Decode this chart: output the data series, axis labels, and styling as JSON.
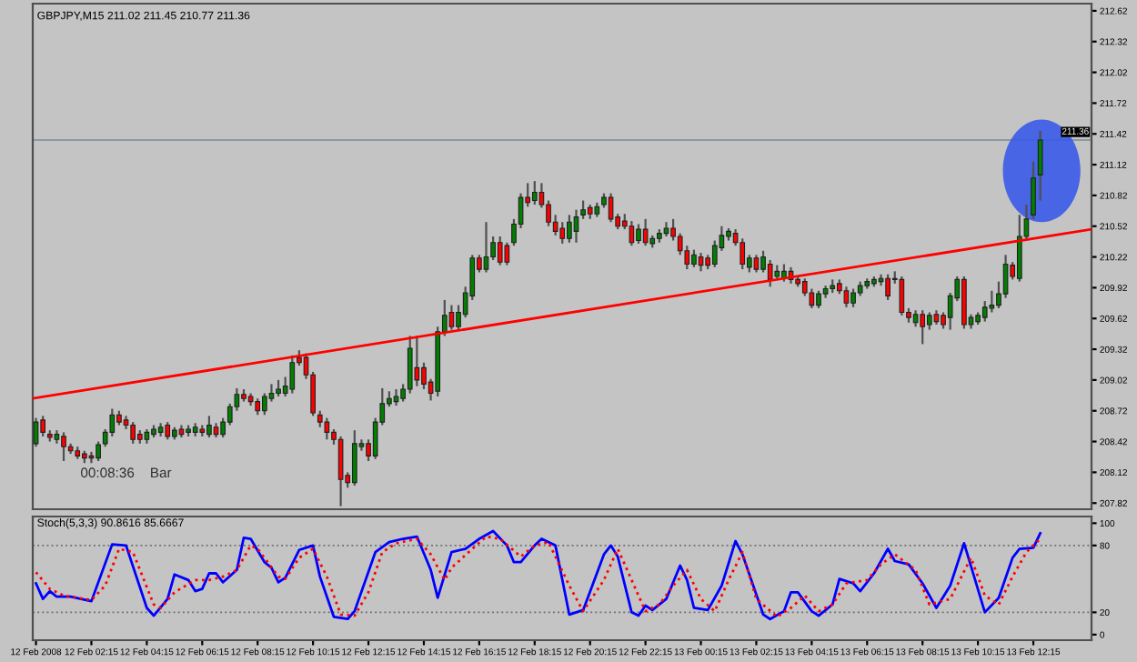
{
  "chart_data": [
    {
      "type": "candlestick",
      "title": "GBPJPY,M15 211.02 211.45 210.77 211.36",
      "x": [
        "2008-02-12T00:15",
        "2008-02-12T00:30",
        "2008-02-12T00:45",
        "2008-02-12T01:00",
        "2008-02-12T01:15",
        "2008-02-12T01:30",
        "2008-02-12T01:45",
        "2008-02-12T02:00",
        "2008-02-12T02:15",
        "2008-02-12T02:30",
        "2008-02-12T02:45",
        "2008-02-12T03:00",
        "2008-02-12T03:15",
        "2008-02-12T03:30",
        "2008-02-12T03:45",
        "2008-02-12T04:00",
        "2008-02-12T04:15",
        "2008-02-12T04:30",
        "2008-02-12T04:45",
        "2008-02-12T05:00",
        "2008-02-12T05:15",
        "2008-02-12T05:30",
        "2008-02-12T05:45",
        "2008-02-12T06:00",
        "2008-02-12T06:15",
        "2008-02-12T06:30",
        "2008-02-12T06:45",
        "2008-02-12T07:00",
        "2008-02-12T07:15",
        "2008-02-12T07:30",
        "2008-02-12T07:45",
        "2008-02-12T08:00",
        "2008-02-12T08:15",
        "2008-02-12T08:30",
        "2008-02-12T08:45",
        "2008-02-12T09:00",
        "2008-02-12T09:15",
        "2008-02-12T09:30",
        "2008-02-12T09:45",
        "2008-02-12T10:00",
        "2008-02-12T10:15",
        "2008-02-12T10:30",
        "2008-02-12T10:45",
        "2008-02-12T11:00",
        "2008-02-12T11:15",
        "2008-02-12T11:30",
        "2008-02-12T11:45",
        "2008-02-12T12:00",
        "2008-02-12T12:15",
        "2008-02-12T12:30",
        "2008-02-12T12:45",
        "2008-02-12T13:00",
        "2008-02-12T13:15",
        "2008-02-12T13:30",
        "2008-02-12T13:45",
        "2008-02-12T14:00",
        "2008-02-12T14:15",
        "2008-02-12T14:30",
        "2008-02-12T14:45",
        "2008-02-12T15:00",
        "2008-02-12T15:15",
        "2008-02-12T15:30",
        "2008-02-12T15:45",
        "2008-02-12T16:00",
        "2008-02-12T16:15",
        "2008-02-12T16:30",
        "2008-02-12T16:45",
        "2008-02-12T17:00",
        "2008-02-12T17:15",
        "2008-02-12T17:30",
        "2008-02-12T17:45",
        "2008-02-12T18:00",
        "2008-02-12T18:15",
        "2008-02-12T18:30",
        "2008-02-12T18:45",
        "2008-02-12T19:00",
        "2008-02-12T19:15",
        "2008-02-12T19:30",
        "2008-02-12T19:45",
        "2008-02-12T20:00",
        "2008-02-12T20:15",
        "2008-02-12T20:30",
        "2008-02-12T20:45",
        "2008-02-12T21:00",
        "2008-02-12T21:15",
        "2008-02-12T21:30",
        "2008-02-12T21:45",
        "2008-02-12T22:00",
        "2008-02-12T22:15",
        "2008-02-12T22:30",
        "2008-02-12T22:45",
        "2008-02-12T23:00",
        "2008-02-12T23:15",
        "2008-02-12T23:30",
        "2008-02-12T23:45",
        "2008-02-13T00:00",
        "2008-02-13T00:15",
        "2008-02-13T00:30",
        "2008-02-13T00:45",
        "2008-02-13T01:00",
        "2008-02-13T01:15",
        "2008-02-13T01:30",
        "2008-02-13T01:45",
        "2008-02-13T02:00",
        "2008-02-13T02:15",
        "2008-02-13T02:30",
        "2008-02-13T02:45",
        "2008-02-13T03:00",
        "2008-02-13T03:15",
        "2008-02-13T03:30",
        "2008-02-13T03:45",
        "2008-02-13T04:00",
        "2008-02-13T04:15",
        "2008-02-13T04:30",
        "2008-02-13T04:45",
        "2008-02-13T05:00",
        "2008-02-13T05:15",
        "2008-02-13T05:30",
        "2008-02-13T05:45",
        "2008-02-13T06:00",
        "2008-02-13T06:15",
        "2008-02-13T06:30",
        "2008-02-13T06:45",
        "2008-02-13T07:00",
        "2008-02-13T07:15",
        "2008-02-13T07:30",
        "2008-02-13T07:45",
        "2008-02-13T08:00",
        "2008-02-13T08:15",
        "2008-02-13T08:30",
        "2008-02-13T08:45",
        "2008-02-13T09:00",
        "2008-02-13T09:15",
        "2008-02-13T09:30",
        "2008-02-13T09:45",
        "2008-02-13T10:00",
        "2008-02-13T10:15",
        "2008-02-13T10:30",
        "2008-02-13T10:45",
        "2008-02-13T11:00",
        "2008-02-13T11:15",
        "2008-02-13T11:30",
        "2008-02-13T11:45",
        "2008-02-13T12:00",
        "2008-02-13T12:15",
        "2008-02-13T12:30"
      ],
      "ohlc": [
        [
          208.4,
          208.65,
          208.37,
          208.61
        ],
        [
          208.63,
          208.67,
          208.47,
          208.51
        ],
        [
          208.49,
          208.53,
          208.42,
          208.46
        ],
        [
          208.44,
          208.53,
          208.4,
          208.49
        ],
        [
          208.47,
          208.51,
          208.23,
          208.37
        ],
        [
          208.37,
          208.4,
          208.3,
          208.33
        ],
        [
          208.33,
          208.37,
          208.25,
          208.28
        ],
        [
          208.3,
          208.33,
          208.21,
          208.26
        ],
        [
          208.28,
          208.32,
          208.21,
          208.26
        ],
        [
          208.26,
          208.42,
          208.23,
          208.39
        ],
        [
          208.4,
          208.54,
          208.37,
          208.51
        ],
        [
          208.51,
          208.74,
          208.47,
          208.68
        ],
        [
          208.68,
          208.72,
          208.58,
          208.61
        ],
        [
          208.63,
          208.67,
          208.54,
          208.58
        ],
        [
          208.58,
          208.61,
          208.4,
          208.44
        ],
        [
          208.49,
          208.53,
          208.4,
          208.44
        ],
        [
          208.44,
          208.54,
          208.4,
          208.51
        ],
        [
          208.49,
          208.58,
          208.46,
          208.54
        ],
        [
          208.51,
          208.6,
          208.47,
          208.56
        ],
        [
          208.58,
          208.61,
          208.44,
          208.47
        ],
        [
          208.47,
          208.56,
          208.44,
          208.53
        ],
        [
          208.54,
          208.58,
          208.46,
          208.49
        ],
        [
          208.51,
          208.58,
          208.47,
          208.54
        ],
        [
          208.51,
          208.6,
          208.47,
          208.56
        ],
        [
          208.54,
          208.58,
          208.47,
          208.51
        ],
        [
          208.49,
          208.67,
          208.46,
          208.58
        ],
        [
          208.56,
          208.6,
          208.46,
          208.49
        ],
        [
          208.49,
          208.65,
          208.46,
          208.61
        ],
        [
          208.61,
          208.79,
          208.58,
          208.76
        ],
        [
          208.76,
          208.94,
          208.72,
          208.88
        ],
        [
          208.88,
          208.93,
          208.81,
          208.84
        ],
        [
          208.86,
          208.89,
          208.77,
          208.81
        ],
        [
          208.81,
          208.84,
          208.68,
          208.72
        ],
        [
          208.72,
          208.89,
          208.68,
          208.86
        ],
        [
          208.84,
          208.98,
          208.81,
          208.89
        ],
        [
          208.89,
          209.02,
          208.86,
          208.93
        ],
        [
          208.89,
          209.05,
          208.86,
          208.96
        ],
        [
          208.93,
          209.26,
          208.89,
          209.19
        ],
        [
          209.24,
          209.31,
          209.16,
          209.19
        ],
        [
          209.24,
          209.28,
          209.03,
          209.07
        ],
        [
          209.07,
          209.1,
          208.67,
          208.7
        ],
        [
          208.68,
          208.72,
          208.56,
          208.61
        ],
        [
          208.61,
          208.65,
          208.44,
          208.51
        ],
        [
          208.51,
          208.54,
          208.39,
          208.44
        ],
        [
          208.44,
          208.47,
          207.79,
          208.05
        ],
        [
          208.09,
          208.12,
          207.97,
          208.02
        ],
        [
          208.02,
          208.53,
          207.99,
          208.4
        ],
        [
          208.37,
          208.44,
          208.33,
          208.4
        ],
        [
          208.4,
          208.44,
          208.23,
          208.28
        ],
        [
          208.28,
          208.65,
          208.25,
          208.61
        ],
        [
          208.61,
          208.94,
          208.58,
          208.79
        ],
        [
          208.79,
          208.91,
          208.76,
          208.84
        ],
        [
          208.81,
          208.93,
          208.77,
          208.86
        ],
        [
          208.84,
          208.98,
          208.81,
          208.93
        ],
        [
          208.93,
          209.45,
          208.89,
          209.33
        ],
        [
          209.14,
          209.45,
          208.96,
          209.02
        ],
        [
          209.14,
          209.19,
          208.93,
          208.98
        ],
        [
          209.0,
          209.03,
          208.82,
          208.89
        ],
        [
          208.91,
          209.54,
          208.86,
          209.49
        ],
        [
          209.49,
          209.8,
          209.45,
          209.65
        ],
        [
          209.68,
          209.75,
          209.51,
          209.54
        ],
        [
          209.54,
          209.75,
          209.51,
          209.68
        ],
        [
          209.66,
          209.93,
          209.63,
          209.87
        ],
        [
          209.84,
          210.24,
          209.8,
          210.21
        ],
        [
          210.21,
          210.24,
          210.07,
          210.1
        ],
        [
          210.1,
          210.56,
          210.07,
          210.22
        ],
        [
          210.22,
          210.42,
          210.19,
          210.36
        ],
        [
          210.36,
          210.42,
          210.14,
          210.17
        ],
        [
          210.33,
          210.36,
          210.14,
          210.17
        ],
        [
          210.36,
          210.59,
          210.33,
          210.54
        ],
        [
          210.54,
          210.84,
          210.5,
          210.8
        ],
        [
          210.8,
          210.94,
          210.71,
          210.75
        ],
        [
          210.77,
          210.96,
          210.73,
          210.85
        ],
        [
          210.85,
          210.94,
          210.7,
          210.73
        ],
        [
          210.73,
          210.77,
          210.52,
          210.56
        ],
        [
          210.56,
          210.63,
          210.43,
          210.47
        ],
        [
          210.5,
          210.56,
          210.35,
          210.4
        ],
        [
          210.4,
          210.63,
          210.36,
          210.56
        ],
        [
          210.47,
          210.68,
          210.36,
          210.61
        ],
        [
          210.63,
          210.77,
          210.59,
          210.68
        ],
        [
          210.7,
          210.73,
          210.59,
          210.64
        ],
        [
          210.64,
          210.75,
          210.61,
          210.71
        ],
        [
          210.73,
          210.84,
          210.7,
          210.8
        ],
        [
          210.8,
          210.84,
          210.56,
          210.59
        ],
        [
          210.61,
          210.64,
          210.49,
          210.52
        ],
        [
          210.57,
          210.64,
          210.49,
          210.52
        ],
        [
          210.52,
          210.57,
          210.33,
          210.36
        ],
        [
          210.38,
          210.54,
          210.35,
          210.49
        ],
        [
          210.49,
          210.59,
          210.33,
          210.36
        ],
        [
          210.35,
          210.43,
          210.31,
          210.4
        ],
        [
          210.4,
          210.49,
          210.36,
          210.45
        ],
        [
          210.45,
          210.56,
          210.42,
          210.5
        ],
        [
          210.5,
          210.59,
          210.38,
          210.42
        ],
        [
          210.42,
          210.45,
          210.24,
          210.28
        ],
        [
          210.28,
          210.33,
          210.1,
          210.15
        ],
        [
          210.15,
          210.29,
          210.12,
          210.24
        ],
        [
          210.22,
          210.26,
          210.08,
          210.14
        ],
        [
          210.21,
          210.24,
          210.1,
          210.14
        ],
        [
          210.15,
          210.38,
          210.12,
          210.33
        ],
        [
          210.31,
          210.52,
          210.28,
          210.43
        ],
        [
          210.42,
          210.5,
          210.38,
          210.47
        ],
        [
          210.45,
          210.49,
          210.33,
          210.36
        ],
        [
          210.36,
          210.4,
          210.1,
          210.15
        ],
        [
          210.12,
          210.24,
          210.07,
          210.21
        ],
        [
          210.21,
          210.24,
          210.07,
          210.1
        ],
        [
          210.1,
          210.28,
          210.07,
          210.22
        ],
        [
          210.15,
          210.19,
          209.93,
          210.0
        ],
        [
          210.03,
          210.14,
          210.0,
          210.08
        ],
        [
          210.01,
          210.15,
          209.98,
          210.08
        ],
        [
          210.08,
          210.12,
          209.96,
          210.0
        ],
        [
          210.0,
          210.03,
          209.93,
          209.96
        ],
        [
          209.98,
          210.01,
          209.84,
          209.87
        ],
        [
          209.87,
          209.91,
          209.72,
          209.75
        ],
        [
          209.75,
          209.89,
          209.72,
          209.86
        ],
        [
          209.86,
          209.94,
          209.82,
          209.91
        ],
        [
          209.91,
          210.0,
          209.87,
          209.94
        ],
        [
          209.96,
          210.0,
          209.86,
          209.89
        ],
        [
          209.89,
          209.93,
          209.73,
          209.77
        ],
        [
          209.77,
          209.91,
          209.73,
          209.87
        ],
        [
          209.87,
          209.98,
          209.84,
          209.94
        ],
        [
          209.94,
          210.01,
          209.91,
          209.98
        ],
        [
          209.96,
          210.03,
          209.93,
          210.0
        ],
        [
          209.98,
          210.05,
          209.94,
          210.01
        ],
        [
          210.01,
          210.05,
          209.8,
          209.84
        ],
        [
          210.0,
          210.08,
          209.96,
          210.01
        ],
        [
          210.0,
          210.03,
          209.65,
          209.68
        ],
        [
          209.68,
          209.72,
          209.58,
          209.63
        ],
        [
          209.58,
          209.7,
          209.54,
          209.66
        ],
        [
          209.66,
          209.7,
          209.37,
          209.54
        ],
        [
          209.56,
          209.68,
          209.51,
          209.65
        ],
        [
          209.66,
          209.7,
          209.56,
          209.59
        ],
        [
          209.65,
          209.68,
          209.52,
          209.56
        ],
        [
          209.63,
          209.87,
          209.51,
          209.84
        ],
        [
          209.82,
          210.03,
          209.79,
          210.0
        ],
        [
          210.0,
          210.03,
          209.52,
          209.56
        ],
        [
          209.56,
          209.66,
          209.52,
          209.63
        ],
        [
          209.59,
          209.68,
          209.56,
          209.65
        ],
        [
          209.63,
          209.79,
          209.59,
          209.73
        ],
        [
          209.72,
          209.89,
          209.68,
          209.75
        ],
        [
          209.75,
          209.98,
          209.72,
          209.86
        ],
        [
          209.86,
          210.24,
          209.82,
          210.15
        ],
        [
          210.14,
          210.17,
          210.0,
          210.03
        ],
        [
          210.01,
          210.63,
          209.98,
          210.42
        ],
        [
          210.42,
          210.73,
          210.38,
          210.59
        ],
        [
          210.63,
          211.15,
          210.59,
          210.99
        ],
        [
          211.02,
          211.45,
          210.77,
          211.36
        ]
      ],
      "colors": [
        "#008000",
        "#ff0000",
        "#ff0000",
        "#008000",
        "#ff0000",
        "#ff0000",
        "#ff0000",
        "#ff0000",
        "#ff0000",
        "#008000",
        "#008000",
        "#008000",
        "#ff0000",
        "#ff0000",
        "#ff0000",
        "#ff0000",
        "#008000",
        "#008000",
        "#008000",
        "#ff0000",
        "#008000",
        "#ff0000",
        "#008000",
        "#008000",
        "#ff0000",
        "#008000",
        "#ff0000",
        "#008000",
        "#008000",
        "#008000",
        "#ff0000",
        "#ff0000",
        "#ff0000",
        "#008000",
        "#008000",
        "#008000",
        "#008000",
        "#008000",
        "#ff0000",
        "#ff0000",
        "#ff0000",
        "#ff0000",
        "#ff0000",
        "#ff0000",
        "#ff0000",
        "#ff0000",
        "#008000",
        "#008000",
        "#ff0000",
        "#008000",
        "#008000",
        "#008000",
        "#008000",
        "#008000",
        "#008000",
        "#ff0000",
        "#ff0000",
        "#ff0000",
        "#008000",
        "#008000",
        "#ff0000",
        "#008000",
        "#008000",
        "#008000",
        "#ff0000",
        "#008000",
        "#008000",
        "#ff0000",
        "#ff0000",
        "#008000",
        "#008000",
        "#ff0000",
        "#008000",
        "#ff0000",
        "#ff0000",
        "#ff0000",
        "#ff0000",
        "#008000",
        "#008000",
        "#008000",
        "#ff0000",
        "#008000",
        "#008000",
        "#ff0000",
        "#ff0000",
        "#ff0000",
        "#ff0000",
        "#008000",
        "#ff0000",
        "#008000",
        "#008000",
        "#008000",
        "#ff0000",
        "#ff0000",
        "#ff0000",
        "#008000",
        "#ff0000",
        "#ff0000",
        "#008000",
        "#008000",
        "#008000",
        "#ff0000",
        "#ff0000",
        "#008000",
        "#ff0000",
        "#008000",
        "#ff0000",
        "#008000",
        "#008000",
        "#ff0000",
        "#ff0000",
        "#ff0000",
        "#ff0000",
        "#008000",
        "#008000",
        "#008000",
        "#ff0000",
        "#ff0000",
        "#008000",
        "#008000",
        "#008000",
        "#008000",
        "#008000",
        "#ff0000",
        "#008000",
        "#ff0000",
        "#ff0000",
        "#008000",
        "#ff0000",
        "#008000",
        "#ff0000",
        "#ff0000",
        "#008000",
        "#008000",
        "#ff0000",
        "#008000",
        "#008000",
        "#008000",
        "#008000",
        "#008000",
        "#008000",
        "#ff0000",
        "#008000",
        "#008000",
        "#008000",
        "#008000"
      ],
      "series": [
        {
          "type": "line",
          "x": [
            "2008-02-12T00:08",
            "2008-02-13T14:21"
          ],
          "values": [
            208.84,
            210.49
          ],
          "color": "#ff0000"
        }
      ],
      "xlim": [
        "2008-02-12T00:08",
        "2008-02-13T14:21"
      ],
      "ylim": [
        207.76,
        212.69
      ],
      "yticks": [
        212.62,
        212.32,
        212.02,
        211.72,
        211.42,
        211.12,
        210.82,
        210.52,
        210.22,
        209.92,
        209.62,
        209.32,
        209.02,
        208.72,
        208.42,
        208.12,
        207.82
      ],
      "ref_lines": [
        {
          "axis": "y",
          "value": 211.36,
          "label": "211.36",
          "color": "#8c9aa6"
        }
      ],
      "annotations": [
        "00:08:36    Bar"
      ],
      "tick_labels": "y"
    },
    {
      "type": "line",
      "title": "Stoch(5,3,3) 90.8616 85.6667",
      "series": [
        {
          "x": [
            "2008-02-12T00:15",
            "2008-02-12T00:30",
            "2008-02-12T00:45",
            "2008-02-12T01:00",
            "2008-02-12T01:30",
            "2008-02-12T02:15",
            "2008-02-12T03:00",
            "2008-02-12T03:30",
            "2008-02-12T04:15",
            "2008-02-12T04:30",
            "2008-02-12T05:00",
            "2008-02-12T05:15",
            "2008-02-12T05:45",
            "2008-02-12T06:00",
            "2008-02-12T06:15",
            "2008-02-12T06:30",
            "2008-02-12T06:45",
            "2008-02-12T07:00",
            "2008-02-12T07:30",
            "2008-02-12T07:45",
            "2008-02-12T08:00",
            "2008-02-12T08:30",
            "2008-02-12T08:45",
            "2008-02-12T09:00",
            "2008-02-12T09:15",
            "2008-02-12T09:45",
            "2008-02-12T10:15",
            "2008-02-12T10:30",
            "2008-02-12T11:00",
            "2008-02-12T11:30",
            "2008-02-12T11:45",
            "2008-02-12T12:30",
            "2008-02-12T13:00",
            "2008-02-12T13:30",
            "2008-02-12T14:00",
            "2008-02-12T14:30",
            "2008-02-12T14:45",
            "2008-02-12T15:15",
            "2008-02-12T15:45",
            "2008-02-12T16:15",
            "2008-02-12T16:45",
            "2008-02-12T17:15",
            "2008-02-12T17:30",
            "2008-02-12T17:45",
            "2008-02-12T18:15",
            "2008-02-12T18:30",
            "2008-02-12T19:00",
            "2008-02-12T19:30",
            "2008-02-12T20:00",
            "2008-02-12T20:45",
            "2008-02-12T21:00",
            "2008-02-12T21:15",
            "2008-02-12T21:45",
            "2008-02-12T22:00",
            "2008-02-12T22:15",
            "2008-02-12T22:30",
            "2008-02-12T23:00",
            "2008-02-12T23:30",
            "2008-02-12T23:45",
            "2008-02-13T00:00",
            "2008-02-13T00:30",
            "2008-02-13T01:00",
            "2008-02-13T01:30",
            "2008-02-13T01:45",
            "2008-02-13T02:30",
            "2008-02-13T02:45",
            "2008-02-13T03:15",
            "2008-02-13T03:30",
            "2008-02-13T03:45",
            "2008-02-13T04:15",
            "2008-02-13T04:30",
            "2008-02-13T05:00",
            "2008-02-13T05:15",
            "2008-02-13T05:45",
            "2008-02-13T06:00",
            "2008-02-13T06:30",
            "2008-02-13T07:00",
            "2008-02-13T07:15",
            "2008-02-13T07:45",
            "2008-02-13T08:15",
            "2008-02-13T08:45",
            "2008-02-13T09:15",
            "2008-02-13T09:45",
            "2008-02-13T10:30",
            "2008-02-13T11:00",
            "2008-02-13T11:30",
            "2008-02-13T11:45",
            "2008-02-13T12:15",
            "2008-02-13T12:30"
          ],
          "values": [
            46,
            32,
            39,
            34,
            34,
            30,
            81,
            80,
            24,
            17,
            32,
            54,
            49,
            39,
            41,
            55,
            55,
            47,
            58,
            87,
            86,
            65,
            60,
            47,
            51,
            76,
            80,
            52,
            16,
            14,
            21,
            74,
            83,
            86,
            88,
            58,
            33,
            74,
            77,
            86,
            93,
            80,
            65,
            65,
            80,
            86,
            80,
            18,
            22,
            72,
            80,
            70,
            20,
            17,
            26,
            22,
            32,
            62,
            49,
            24,
            22,
            44,
            84,
            72,
            18,
            14,
            21,
            38,
            38,
            21,
            17,
            27,
            50,
            46,
            39,
            55,
            77,
            66,
            63,
            46,
            24,
            44,
            82,
            20,
            33,
            69,
            77,
            78,
            91
          ],
          "color": "#0000ff",
          "line_style": "solid"
        },
        {
          "x": [
            "2008-02-12T00:15",
            "2008-02-12T00:45",
            "2008-02-12T01:15",
            "2008-02-12T02:15",
            "2008-02-12T02:45",
            "2008-02-12T03:15",
            "2008-02-12T03:45",
            "2008-02-12T04:30",
            "2008-02-12T04:45",
            "2008-02-12T05:15",
            "2008-02-12T06:00",
            "2008-02-12T06:30",
            "2008-02-12T07:00",
            "2008-02-12T07:30",
            "2008-02-12T08:00",
            "2008-02-12T08:15",
            "2008-02-12T09:00",
            "2008-02-12T09:15",
            "2008-02-12T09:45",
            "2008-02-12T10:15",
            "2008-02-12T10:45",
            "2008-02-12T11:15",
            "2008-02-12T11:45",
            "2008-02-12T12:15",
            "2008-02-12T12:45",
            "2008-02-12T13:15",
            "2008-02-12T14:00",
            "2008-02-12T14:30",
            "2008-02-12T15:00",
            "2008-02-12T15:15",
            "2008-02-12T16:00",
            "2008-02-12T16:30",
            "2008-02-12T17:00",
            "2008-02-12T17:45",
            "2008-02-12T18:15",
            "2008-02-12T18:45",
            "2008-02-12T19:30",
            "2008-02-12T20:00",
            "2008-02-12T20:45",
            "2008-02-12T21:15",
            "2008-02-12T21:45",
            "2008-02-12T22:15",
            "2008-02-12T22:45",
            "2008-02-12T23:15",
            "2008-02-12T23:45",
            "2008-02-13T00:15",
            "2008-02-13T00:45",
            "2008-02-13T01:15",
            "2008-02-13T01:45",
            "2008-02-13T02:15",
            "2008-02-13T03:00",
            "2008-02-13T03:30",
            "2008-02-13T04:00",
            "2008-02-13T04:30",
            "2008-02-13T05:00",
            "2008-02-13T05:30",
            "2008-02-13T06:15",
            "2008-02-13T06:45",
            "2008-02-13T07:15",
            "2008-02-13T08:00",
            "2008-02-13T08:30",
            "2008-02-13T09:15",
            "2008-02-13T10:00",
            "2008-02-13T10:30",
            "2008-02-13T11:00",
            "2008-02-13T11:30",
            "2008-02-13T12:00",
            "2008-02-13T12:30"
          ],
          "values": [
            56,
            41,
            35,
            31,
            44,
            77,
            74,
            27,
            24,
            38,
            49,
            49,
            52,
            58,
            80,
            77,
            52,
            50,
            69,
            77,
            52,
            18,
            17,
            38,
            74,
            82,
            86,
            72,
            49,
            60,
            77,
            88,
            86,
            70,
            80,
            83,
            44,
            21,
            49,
            77,
            49,
            21,
            27,
            44,
            58,
            32,
            21,
            49,
            74,
            32,
            16,
            24,
            35,
            21,
            27,
            46,
            49,
            63,
            72,
            58,
            27,
            32,
            69,
            35,
            27,
            52,
            74,
            86
          ],
          "color": "#ff0000",
          "line_style": "dotted"
        }
      ],
      "xlim": [
        "2008-02-12T00:08",
        "2008-02-13T14:21"
      ],
      "ylim": [
        -5,
        106
      ],
      "yticks": [
        0,
        20,
        80,
        100
      ],
      "xticks": [
        {
          "value": "2008-02-12T00:15",
          "label": "12 Feb 2008"
        },
        {
          "value": "2008-02-12T02:15",
          "label": "12 Feb 02:15"
        },
        {
          "value": "2008-02-12T04:15",
          "label": "12 Feb 04:15"
        },
        {
          "value": "2008-02-12T06:15",
          "label": "12 Feb 06:15"
        },
        {
          "value": "2008-02-12T08:15",
          "label": "12 Feb 08:15"
        },
        {
          "value": "2008-02-12T10:15",
          "label": "12 Feb 10:15"
        },
        {
          "value": "2008-02-12T12:15",
          "label": "12 Feb 12:15"
        },
        {
          "value": "2008-02-12T14:15",
          "label": "12 Feb 14:15"
        },
        {
          "value": "2008-02-12T16:15",
          "label": "12 Feb 16:15"
        },
        {
          "value": "2008-02-12T18:15",
          "label": "12 Feb 18:15"
        },
        {
          "value": "2008-02-12T20:15",
          "label": "12 Feb 20:15"
        },
        {
          "value": "2008-02-12T22:15",
          "label": "12 Feb 22:15"
        },
        {
          "value": "2008-02-13T00:15",
          "label": "13 Feb 00:15"
        },
        {
          "value": "2008-02-13T02:15",
          "label": "13 Feb 02:15"
        },
        {
          "value": "2008-02-13T04:15",
          "label": "13 Feb 04:15"
        },
        {
          "value": "2008-02-13T06:15",
          "label": "13 Feb 06:15"
        },
        {
          "value": "2008-02-13T08:15",
          "label": "13 Feb 08:15"
        },
        {
          "value": "2008-02-13T10:15",
          "label": "13 Feb 10:15"
        },
        {
          "value": "2008-02-13T12:15",
          "label": "13 Feb 12:15"
        }
      ],
      "ref_lines": [
        {
          "axis": "y",
          "value": 20,
          "color": "#707070",
          "line_style": "dotted"
        },
        {
          "axis": "y",
          "value": 80,
          "color": "#707070",
          "line_style": "dotted"
        }
      ]
    }
  ]
}
